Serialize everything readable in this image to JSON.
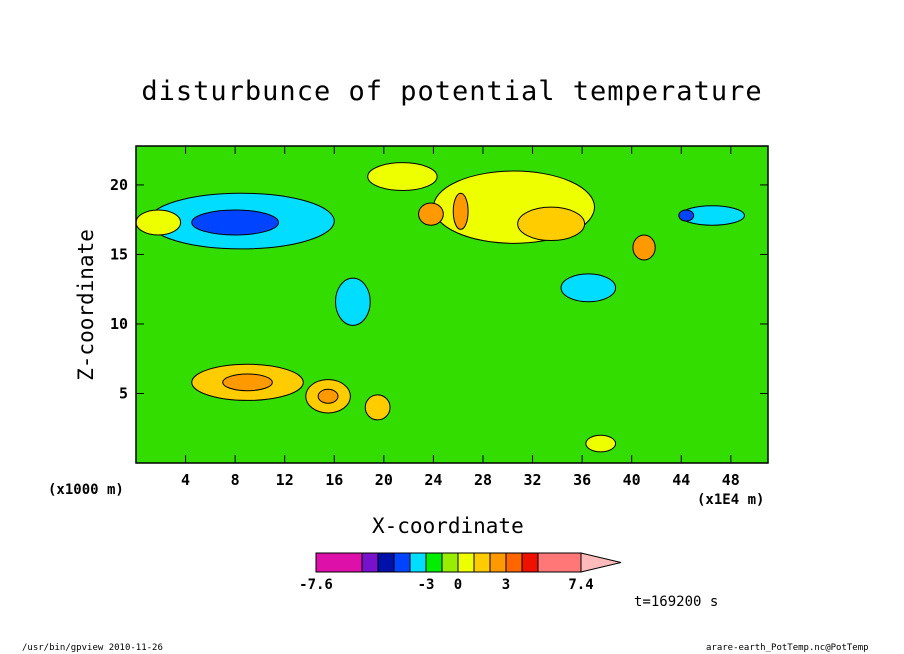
{
  "chart_data": {
    "type": "heatmap",
    "title": "disturbunce of potential temperature",
    "xlabel": "X-coordinate",
    "ylabel": "Z-coordinate",
    "x_unit_left": "(x1000 m)",
    "x_unit_right": "(x1E4 m)",
    "xlim": [
      0,
      51
    ],
    "ylim": [
      0,
      22.8
    ],
    "x_ticks": [
      4,
      8,
      12,
      16,
      20,
      24,
      28,
      32,
      36,
      40,
      44,
      48
    ],
    "y_ticks": [
      5,
      10,
      15,
      20
    ],
    "background_level_color": "#33dd00",
    "colorbar": {
      "colors": [
        "#dd11aa",
        "#7711cc",
        "#0011aa",
        "#0044ff",
        "#00ddff",
        "#00ee00",
        "#99ee00",
        "#eeff00",
        "#ffcc00",
        "#ff9900",
        "#ff6600",
        "#ee1100",
        "#ff7777",
        "#ffbbbb"
      ],
      "tick_labels": [
        "-7.6",
        "-3",
        "0",
        "3",
        "7.4"
      ],
      "extend": "right"
    },
    "regions": [
      {
        "level": "#ffcc00",
        "x": 9,
        "z": 5.8,
        "rx": 4.5,
        "rz": 1.3
      },
      {
        "level": "#ff9900",
        "x": 9,
        "z": 5.8,
        "rx": 2.0,
        "rz": 0.6
      },
      {
        "level": "#ffcc00",
        "x": 15.5,
        "z": 4.8,
        "rx": 1.8,
        "rz": 1.2
      },
      {
        "level": "#ff9900",
        "x": 15.5,
        "z": 4.8,
        "rx": 0.8,
        "rz": 0.5
      },
      {
        "level": "#ffcc00",
        "x": 19.5,
        "z": 4.0,
        "rx": 1.0,
        "rz": 0.9
      },
      {
        "level": "#00ddff",
        "x": 8.5,
        "z": 17.4,
        "rx": 7.5,
        "rz": 2.0
      },
      {
        "level": "#0044ff",
        "x": 8,
        "z": 17.3,
        "rx": 3.5,
        "rz": 0.9
      },
      {
        "level": "#00ddff",
        "x": 17.5,
        "z": 11.6,
        "rx": 1.4,
        "rz": 1.7
      },
      {
        "level": "#eeff00",
        "x": 30.5,
        "z": 18.4,
        "rx": 6.5,
        "rz": 2.6
      },
      {
        "level": "#ffcc00",
        "x": 33.5,
        "z": 17.2,
        "rx": 2.7,
        "rz": 1.2
      },
      {
        "level": "#ff9900",
        "x": 23.8,
        "z": 17.9,
        "rx": 1.0,
        "rz": 0.8
      },
      {
        "level": "#ff9900",
        "x": 26.2,
        "z": 18.1,
        "rx": 0.6,
        "rz": 1.3
      },
      {
        "level": "#ff9900",
        "x": 41,
        "z": 15.5,
        "rx": 0.9,
        "rz": 0.9
      },
      {
        "level": "#eeff00",
        "x": 21.5,
        "z": 20.6,
        "rx": 2.8,
        "rz": 1.0
      },
      {
        "level": "#00ddff",
        "x": 36.5,
        "z": 12.6,
        "rx": 2.2,
        "rz": 1.0
      },
      {
        "level": "#00ddff",
        "x": 46.5,
        "z": 17.8,
        "rx": 2.6,
        "rz": 0.7
      },
      {
        "level": "#0044ff",
        "x": 44.4,
        "z": 17.8,
        "rx": 0.6,
        "rz": 0.4
      },
      {
        "level": "#eeff00",
        "x": 1.8,
        "z": 17.3,
        "rx": 1.8,
        "rz": 0.9
      },
      {
        "level": "#eeff00",
        "x": 37.5,
        "z": 1.4,
        "rx": 1.2,
        "rz": 0.6
      }
    ]
  },
  "timestamp": "t=169200 s",
  "footer_left": "/usr/bin/gpview   2010-11-26",
  "footer_right": "arare-earth_PotTemp.nc@PotTemp"
}
